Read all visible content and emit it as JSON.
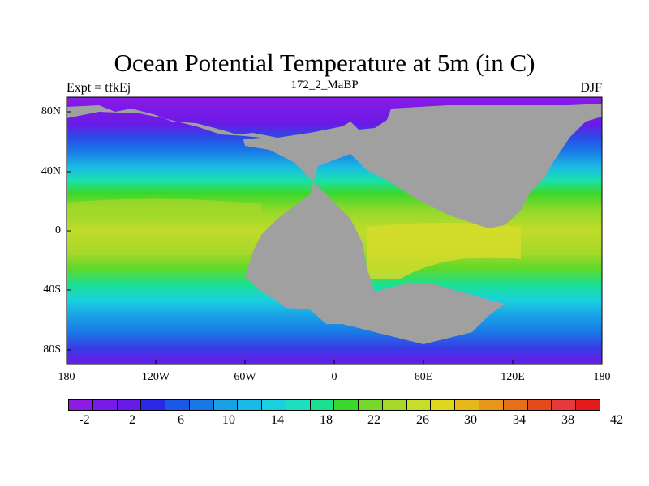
{
  "title": "Ocean Potential Temperature at 5m (in C)",
  "subtitle_left": "Expt = tfkEj",
  "subtitle_center": "172_2_MaBP",
  "subtitle_right": "DJF",
  "map": {
    "land_color": "#a0a0a0",
    "lat_ticks": [
      "80N",
      "40N",
      "0",
      "40S",
      "80S"
    ],
    "lon_ticks": [
      "180",
      "120W",
      "60W",
      "0",
      "60E",
      "120E",
      "180"
    ]
  },
  "colorbar": {
    "colors": [
      "#8e1ae5",
      "#7a1ae8",
      "#6a1ae6",
      "#2a2ae6",
      "#1a58e6",
      "#1a78e6",
      "#1aa0e6",
      "#1ab8e6",
      "#1ad0e0",
      "#1ae0c0",
      "#1ae090",
      "#3ad82a",
      "#78d82a",
      "#a8d82a",
      "#c8dc2a",
      "#e0d81a",
      "#e6b81a",
      "#e6961a",
      "#e6701a",
      "#e64a1a",
      "#e63a3a",
      "#e61a1a"
    ],
    "labels": [
      "-2",
      "2",
      "6",
      "10",
      "14",
      "18",
      "22",
      "26",
      "30",
      "34",
      "38",
      "42"
    ]
  }
}
